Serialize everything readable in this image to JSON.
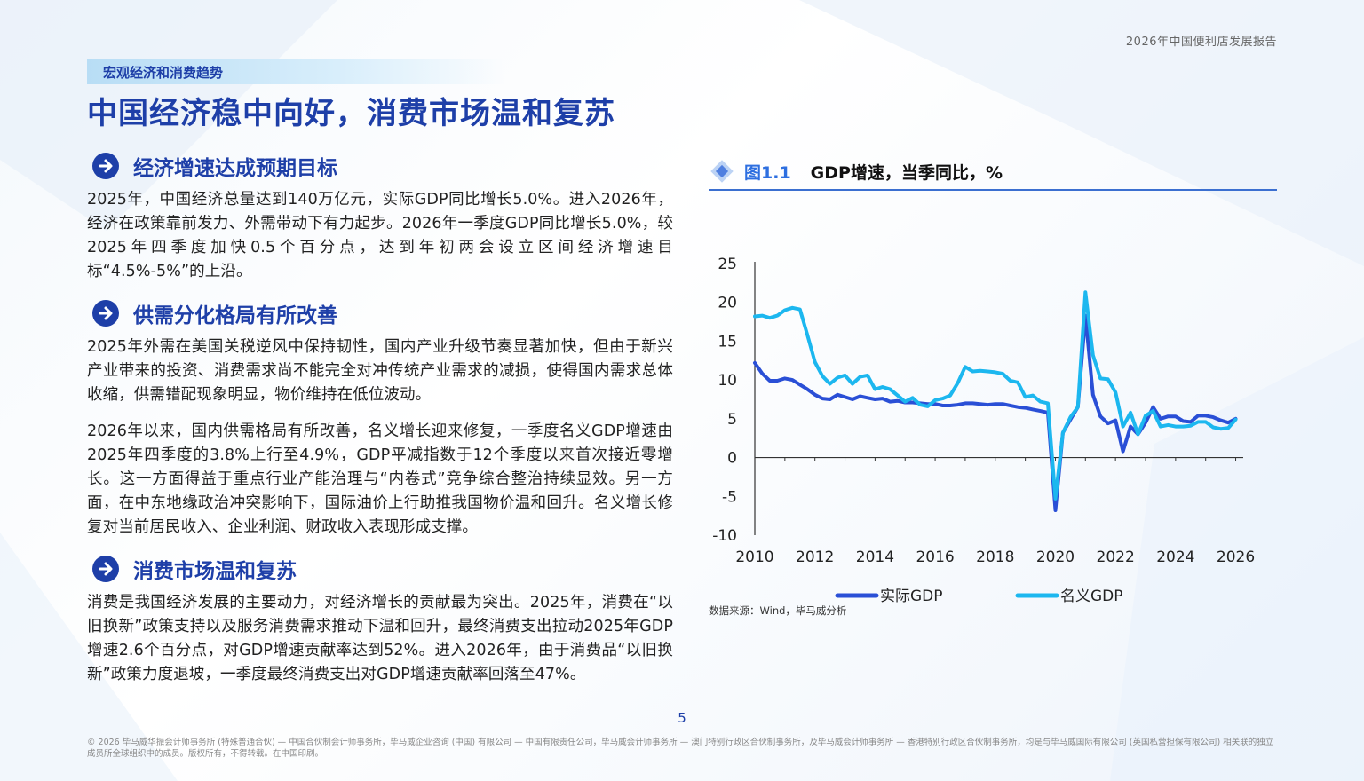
{
  "header": {
    "report_title": "2026年中国便利店发展报告"
  },
  "section_tag": "宏观经济和消费趋势",
  "page_title": "中国经济稳中向好，消费市场温和复苏",
  "sections": [
    {
      "heading": "经济增速达成预期目标",
      "paragraphs": [
        "2025年，中国经济总量达到140万亿元，实际GDP同比增长5.0%。进入2026年，经济在政策靠前发力、外需带动下有力起步。2026年一季度GDP同比增长5.0%，较2025年四季度加快0.5个百分点，达到年初两会设立区间经济增速目标“4.5%-5%”的上沿。"
      ]
    },
    {
      "heading": "供需分化格局有所改善",
      "paragraphs": [
        "2025年外需在美国关税逆风中保持韧性，国内产业升级节奏显著加快，但由于新兴产业带来的投资、消费需求尚不能完全对冲传统产业需求的减损，使得国内需求总体收缩，供需错配现象明显，物价维持在低位波动。",
        "2026年以来，国内供需格局有所改善，名义增长迎来修复，一季度名义GDP增速由2025年四季度的3.8%上行至4.9%，GDP平减指数于12个季度以来首次接近零增长。这一方面得益于重点行业产能治理与“内卷式”竞争综合整治持续显效。另一方面，在中东地缘政治冲突影响下，国际油价上行助推我国物价温和回升。名义增长修复对当前居民收入、企业利润、财政收入表现形成支撑。"
      ]
    },
    {
      "heading": "消费市场温和复苏",
      "paragraphs": [
        "消费是我国经济发展的主要动力，对经济增长的贡献最为突出。2025年，消费在“以旧换新”政策支持以及服务消费需求推动下温和回升，最终消费支出拉动2025年GDP增速2.6个百分点，对GDP增速贡献率达到52%。进入2026年，由于消费品“以旧换新”政策力度退坡，一季度最终消费支出对GDP增速贡献率回落至47%。"
      ]
    }
  ],
  "figure": {
    "label": "图1.1",
    "title": "GDP增速，当季同比，%",
    "source": "数据来源：Wind，毕马威分析"
  },
  "chart_data": {
    "type": "line",
    "title": "GDP增速，当季同比，%",
    "xlabel": "",
    "ylabel": "",
    "xlim": [
      2010,
      2026.25
    ],
    "ylim": [
      -10,
      25
    ],
    "x_ticks": [
      "2010",
      "2012",
      "2014",
      "2016",
      "2018",
      "2020",
      "2022",
      "2024",
      "2026"
    ],
    "y_ticks": [
      "25",
      "20",
      "15",
      "10",
      "5",
      "0",
      "-5",
      "-10"
    ],
    "legend_position": "bottom",
    "series": [
      {
        "name": "实际GDP",
        "color": "#2a4fd6",
        "x": [
          2010,
          2010.25,
          2010.5,
          2010.75,
          2011,
          2011.25,
          2011.5,
          2011.75,
          2012,
          2012.25,
          2012.5,
          2012.75,
          2013,
          2013.25,
          2013.5,
          2013.75,
          2014,
          2014.25,
          2014.5,
          2014.75,
          2015,
          2015.25,
          2015.5,
          2015.75,
          2016,
          2016.25,
          2016.5,
          2016.75,
          2017,
          2017.25,
          2017.5,
          2017.75,
          2018,
          2018.25,
          2018.5,
          2018.75,
          2019,
          2019.25,
          2019.5,
          2019.75,
          2020,
          2020.25,
          2020.5,
          2020.75,
          2021,
          2021.25,
          2021.5,
          2021.75,
          2022,
          2022.25,
          2022.5,
          2022.75,
          2023,
          2023.25,
          2023.5,
          2023.75,
          2024,
          2024.25,
          2024.5,
          2024.75,
          2025,
          2025.25,
          2025.5,
          2025.75,
          2026
        ],
        "values": [
          12.2,
          10.8,
          9.9,
          9.9,
          10.2,
          10.0,
          9.4,
          8.8,
          8.1,
          7.6,
          7.5,
          8.1,
          7.8,
          7.5,
          7.9,
          7.7,
          7.5,
          7.6,
          7.2,
          7.3,
          7.1,
          7.1,
          7.0,
          6.9,
          6.9,
          6.7,
          6.7,
          6.8,
          7.0,
          7.0,
          6.9,
          6.8,
          6.9,
          6.9,
          6.7,
          6.5,
          6.4,
          6.2,
          6.0,
          5.8,
          -6.8,
          3.2,
          4.9,
          6.5,
          18.3,
          8.1,
          5.3,
          4.4,
          4.8,
          0.8,
          4.0,
          3.0,
          4.5,
          6.5,
          5.0,
          5.3,
          5.3,
          4.7,
          4.6,
          5.4,
          5.4,
          5.2,
          4.8,
          4.5,
          5.0
        ]
      },
      {
        "name": "名义GDP",
        "color": "#1cb7ef",
        "x": [
          2010,
          2010.25,
          2010.5,
          2010.75,
          2011,
          2011.25,
          2011.5,
          2011.75,
          2012,
          2012.25,
          2012.5,
          2012.75,
          2013,
          2013.25,
          2013.5,
          2013.75,
          2014,
          2014.25,
          2014.5,
          2014.75,
          2015,
          2015.25,
          2015.5,
          2015.75,
          2016,
          2016.25,
          2016.5,
          2016.75,
          2017,
          2017.25,
          2017.5,
          2017.75,
          2018,
          2018.25,
          2018.5,
          2018.75,
          2019,
          2019.25,
          2019.5,
          2019.75,
          2020,
          2020.25,
          2020.5,
          2020.75,
          2021,
          2021.25,
          2021.5,
          2021.75,
          2022,
          2022.25,
          2022.5,
          2022.75,
          2023,
          2023.25,
          2023.5,
          2023.75,
          2024,
          2024.25,
          2024.5,
          2024.75,
          2025,
          2025.25,
          2025.5,
          2025.75,
          2026
        ],
        "values": [
          18.2,
          18.3,
          18.0,
          18.3,
          19.0,
          19.3,
          19.1,
          15.8,
          12.3,
          10.5,
          9.5,
          10.3,
          10.6,
          9.5,
          10.4,
          10.6,
          8.8,
          9.1,
          8.8,
          8.0,
          7.2,
          7.7,
          6.8,
          6.6,
          7.4,
          7.6,
          8.0,
          9.6,
          11.7,
          11.1,
          11.2,
          11.1,
          11.0,
          10.8,
          9.9,
          9.7,
          7.8,
          8.0,
          7.2,
          7.0,
          -5.3,
          3.2,
          5.2,
          6.5,
          21.3,
          13.2,
          10.2,
          10.1,
          8.4,
          4.0,
          5.8,
          3.0,
          5.4,
          6.0,
          4.0,
          4.2,
          4.0,
          4.0,
          4.1,
          4.6,
          4.6,
          3.9,
          3.7,
          3.8,
          4.9
        ]
      }
    ]
  }
}
